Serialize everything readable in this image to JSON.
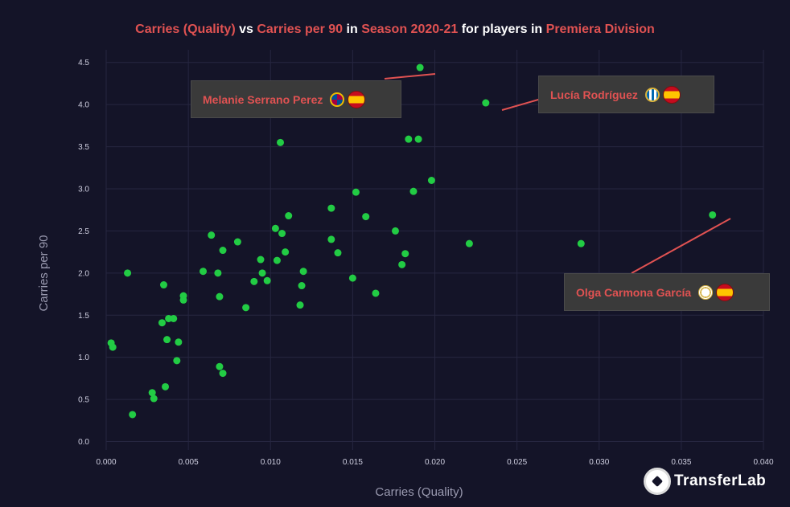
{
  "title": {
    "part1": "Carries (Quality)",
    "part2": " vs ",
    "part3": "Carries per 90",
    "part4": " in ",
    "part5": "Season 2020-21",
    "part6": " for players in ",
    "part7": "Premiera Division"
  },
  "colors": {
    "background": "#141428",
    "point": "#22cc44",
    "highlight": "#e05252",
    "grid": "#262640",
    "annotation_box": "#3a3a3a"
  },
  "brand": {
    "text": "TransferLab",
    "icon": "football-icon"
  },
  "chart_data": {
    "type": "scatter",
    "title": "Carries (Quality) vs Carries per 90 in Season 2020-21 for players in Premiera Division",
    "xlabel": "Carries (Quality)",
    "ylabel": "Carries per 90",
    "xlim": [
      0.0,
      0.04
    ],
    "ylim": [
      -0.1,
      4.65
    ],
    "xticks": [
      0.0,
      0.005,
      0.01,
      0.015,
      0.02,
      0.025,
      0.03,
      0.035,
      0.04
    ],
    "xtick_labels": [
      "0.000",
      "0.005",
      "0.010",
      "0.015",
      "0.020",
      "0.025",
      "0.030",
      "0.035",
      "0.040"
    ],
    "yticks": [
      0.0,
      0.5,
      1.0,
      1.5,
      2.0,
      2.5,
      3.0,
      3.5,
      4.0,
      4.5
    ],
    "ytick_labels": [
      "0.0",
      "0.5",
      "1.0",
      "1.5",
      "2.0",
      "2.5",
      "3.0",
      "3.5",
      "4.0",
      "4.5"
    ],
    "grid": true,
    "points": [
      {
        "x": 0.0003,
        "y": 1.17
      },
      {
        "x": 0.0004,
        "y": 1.12
      },
      {
        "x": 0.0013,
        "y": 2.0
      },
      {
        "x": 0.0016,
        "y": 0.32
      },
      {
        "x": 0.0028,
        "y": 0.58
      },
      {
        "x": 0.0029,
        "y": 0.51
      },
      {
        "x": 0.0034,
        "y": 1.41
      },
      {
        "x": 0.0035,
        "y": 1.86
      },
      {
        "x": 0.0036,
        "y": 0.65
      },
      {
        "x": 0.0037,
        "y": 1.21
      },
      {
        "x": 0.0038,
        "y": 1.46
      },
      {
        "x": 0.0041,
        "y": 1.46
      },
      {
        "x": 0.0043,
        "y": 0.96
      },
      {
        "x": 0.0044,
        "y": 1.18
      },
      {
        "x": 0.0047,
        "y": 1.73
      },
      {
        "x": 0.0047,
        "y": 1.68
      },
      {
        "x": 0.0059,
        "y": 2.02
      },
      {
        "x": 0.0064,
        "y": 2.45
      },
      {
        "x": 0.0068,
        "y": 2.0
      },
      {
        "x": 0.0069,
        "y": 1.72
      },
      {
        "x": 0.0069,
        "y": 0.89
      },
      {
        "x": 0.0071,
        "y": 2.27
      },
      {
        "x": 0.0071,
        "y": 0.81
      },
      {
        "x": 0.008,
        "y": 2.37
      },
      {
        "x": 0.0085,
        "y": 1.59
      },
      {
        "x": 0.009,
        "y": 1.9
      },
      {
        "x": 0.0094,
        "y": 2.16
      },
      {
        "x": 0.0095,
        "y": 2.0
      },
      {
        "x": 0.0098,
        "y": 1.91
      },
      {
        "x": 0.0103,
        "y": 2.53
      },
      {
        "x": 0.0104,
        "y": 2.15
      },
      {
        "x": 0.0106,
        "y": 3.55
      },
      {
        "x": 0.0107,
        "y": 2.47
      },
      {
        "x": 0.0109,
        "y": 2.25
      },
      {
        "x": 0.0111,
        "y": 2.68
      },
      {
        "x": 0.0118,
        "y": 1.62
      },
      {
        "x": 0.0119,
        "y": 1.85
      },
      {
        "x": 0.012,
        "y": 2.02
      },
      {
        "x": 0.0137,
        "y": 2.77
      },
      {
        "x": 0.0137,
        "y": 2.4
      },
      {
        "x": 0.0141,
        "y": 2.24
      },
      {
        "x": 0.015,
        "y": 1.94
      },
      {
        "x": 0.0152,
        "y": 2.96
      },
      {
        "x": 0.0158,
        "y": 2.67
      },
      {
        "x": 0.0164,
        "y": 1.76
      },
      {
        "x": 0.0176,
        "y": 2.5
      },
      {
        "x": 0.018,
        "y": 2.1
      },
      {
        "x": 0.0182,
        "y": 2.23
      },
      {
        "x": 0.0184,
        "y": 3.59
      },
      {
        "x": 0.0187,
        "y": 2.97
      },
      {
        "x": 0.019,
        "y": 3.59
      },
      {
        "x": 0.0191,
        "y": 4.44
      },
      {
        "x": 0.0198,
        "y": 3.1
      },
      {
        "x": 0.0221,
        "y": 2.35
      },
      {
        "x": 0.0231,
        "y": 4.02
      },
      {
        "x": 0.0289,
        "y": 2.35
      },
      {
        "x": 0.0369,
        "y": 2.69
      }
    ],
    "annotations": [
      {
        "name": "Melanie Serrano Perez",
        "club_icon": "barcelona-crest-icon",
        "flag_icon": "spain-flag-icon",
        "x": 0.0191,
        "y": 4.44
      },
      {
        "name": "Lucía Rodríguez",
        "club_icon": "real-sociedad-crest-icon",
        "flag_icon": "spain-flag-icon",
        "x": 0.0231,
        "y": 4.02
      },
      {
        "name": "Olga Carmona García",
        "club_icon": "real-madrid-crest-icon",
        "flag_icon": "spain-flag-icon",
        "x": 0.0369,
        "y": 2.69
      }
    ]
  }
}
